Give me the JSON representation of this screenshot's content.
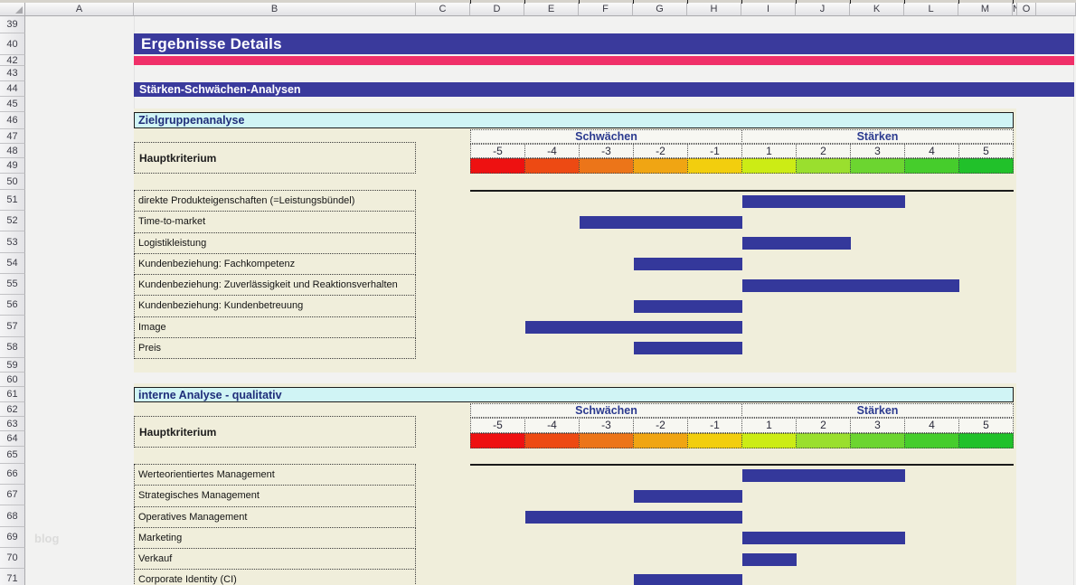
{
  "window": {
    "watermark": "blog"
  },
  "page": {
    "title": "Ergebnisse Details",
    "banner": "Stärken-Schwächen-Analysen"
  },
  "spreadsheet": {
    "column_headers": [
      "A",
      "B",
      "C",
      "D",
      "E",
      "F",
      "G",
      "H",
      "I",
      "J",
      "K",
      "L",
      "M",
      "N",
      "O",
      ""
    ],
    "row_numbers": [
      "39",
      "40",
      "42",
      "43",
      "44",
      "45",
      "46",
      "47",
      "48",
      "49",
      "50",
      "51",
      "52",
      "53",
      "54",
      "55",
      "56",
      "57",
      "58",
      "59",
      "60",
      "61",
      "62",
      "63",
      "64",
      "65",
      "66",
      "67",
      "68",
      "69",
      "70",
      "71"
    ]
  },
  "colors": {
    "banner_navy": "#3A3A9C",
    "stripe_pink": "#F03069",
    "section_cyan": "#D0F4F5",
    "content_beige": "#F0EEDB",
    "bar_navy": "#34389B",
    "scale_colors": [
      "#EE1111",
      "#ED4A13",
      "#EC7519",
      "#F0A513",
      "#F2CE0E",
      "#CCEC15",
      "#9ADF2E",
      "#6CD530",
      "#46CD2C",
      "#21C12A"
    ]
  },
  "chart_data": [
    {
      "type": "bar",
      "orientation": "horizontal",
      "title": "Zielgruppenanalyse",
      "row_header": "Hauptkriterium",
      "group_labels": {
        "negative": "Schwächen",
        "positive": "Stärken"
      },
      "tick_labels": [
        "-5",
        "-4",
        "-3",
        "-2",
        "-1",
        "1",
        "2",
        "3",
        "4",
        "5"
      ],
      "xlim": [
        -5,
        5
      ],
      "categories": [
        "direkte Produkteigenschaften (=Leistungsbündel)",
        "Time-to-market",
        "Logistikleistung",
        "Kundenbeziehung: Fachkompetenz",
        "Kundenbeziehung: Zuverlässigkeit und Reaktionsverhalten",
        "Kundenbeziehung: Kundenbetreuung",
        "Image",
        "Preis"
      ],
      "values": [
        3,
        -3,
        2,
        -2,
        4,
        -2,
        -4,
        -2
      ]
    },
    {
      "type": "bar",
      "orientation": "horizontal",
      "title": "interne Analyse - qualitativ",
      "row_header": "Hauptkriterium",
      "group_labels": {
        "negative": "Schwächen",
        "positive": "Stärken"
      },
      "tick_labels": [
        "-5",
        "-4",
        "-3",
        "-2",
        "-1",
        "1",
        "2",
        "3",
        "4",
        "5"
      ],
      "xlim": [
        -5,
        5
      ],
      "categories": [
        "Werteorientiertes Management",
        "Strategisches Management",
        "Operatives Management",
        "Marketing",
        "Verkauf",
        "Corporate Identity (CI)"
      ],
      "values": [
        3,
        -2,
        -4,
        3,
        1,
        -2
      ]
    }
  ]
}
